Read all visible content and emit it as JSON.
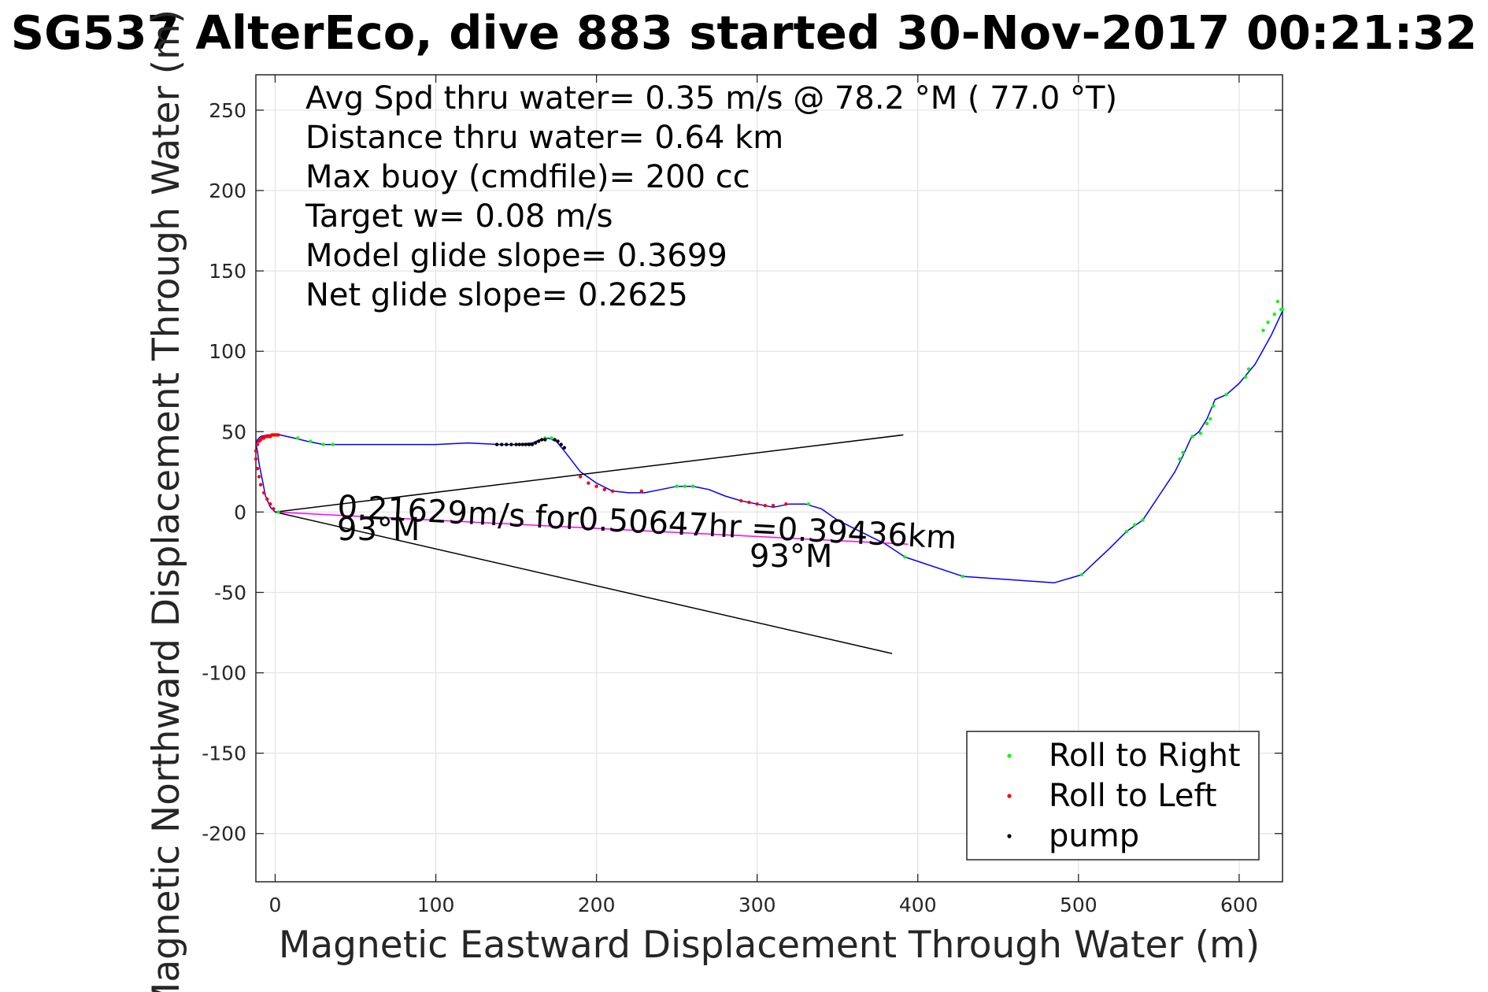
{
  "chart_data": {
    "type": "line",
    "title": "SG537 AlterEco, dive 883 started 30-Nov-2017 00:21:32",
    "xlabel": "Magnetic Eastward Displacement Through Water (m)",
    "ylabel": "Magnetic Northward Displacement Through Water (m)",
    "xlim": [
      -12,
      627
    ],
    "ylim": [
      -230,
      272
    ],
    "xticks": [
      0,
      100,
      200,
      300,
      400,
      500,
      600
    ],
    "yticks": [
      -200,
      -150,
      -100,
      -50,
      0,
      50,
      100,
      150,
      200,
      250
    ],
    "grid": true,
    "legend_position": "bottom-right",
    "colors": {
      "track": "#0000ff",
      "roll_right": "#00ff00",
      "roll_left": "#ff0000",
      "pump": "#000000",
      "current_line": "#ff00ff",
      "cone_lines": "#000000",
      "grid": "#e3e3e3"
    },
    "info_lines": [
      "Avg Spd thru water=  0.35 m/s @  78.2 °M ( 77.0 °T)",
      "Distance thru water=  0.64 km",
      "Max buoy (cmdfile)= 200 cc",
      "Target w= 0.08 m/s",
      "Model glide slope= 0.3699",
      "Net glide slope= 0.2625"
    ],
    "annotations": {
      "current_label": "0.21629m/s for0.50647hr =0.39436km",
      "heading_start": "93°M",
      "heading_end": "93°M"
    },
    "legend": [
      "Roll to Right",
      "Roll to Left",
      "pump"
    ],
    "series": [
      {
        "name": "track",
        "style": "line",
        "x": [
          0,
          -3,
          -6,
          -8,
          -10,
          -11,
          -12,
          -11,
          -9,
          -5,
          0,
          3,
          12,
          20,
          30,
          40,
          60,
          80,
          100,
          120,
          140,
          150,
          160,
          165,
          170,
          175,
          180,
          190,
          200,
          210,
          220,
          230,
          240,
          250,
          260,
          270,
          280,
          290,
          300,
          310,
          320,
          330,
          340,
          350,
          360,
          380,
          392,
          428,
          485,
          502,
          520,
          530,
          540,
          550,
          560,
          565,
          570,
          575,
          580,
          585,
          592,
          600,
          610,
          620,
          627
        ],
        "y": [
          0,
          3,
          10,
          20,
          30,
          38,
          42,
          45,
          47,
          48,
          48,
          48,
          46,
          44,
          42,
          42,
          42,
          42,
          42,
          43,
          42,
          42,
          43,
          45,
          46,
          44,
          38,
          25,
          18,
          13,
          12,
          12,
          14,
          16,
          16,
          14,
          10,
          7,
          5,
          3,
          5,
          5,
          2,
          -5,
          -10,
          -20,
          -28,
          -40,
          -44,
          -39,
          -22,
          -12,
          -5,
          10,
          25,
          35,
          46,
          50,
          58,
          70,
          73,
          80,
          92,
          110,
          125
        ]
      },
      {
        "name": "Roll to Right",
        "style": "points",
        "x": [
          2,
          14,
          22,
          30,
          36,
          168,
          172,
          250,
          255,
          260,
          332,
          392,
          428,
          502,
          530,
          535,
          540,
          563,
          565,
          571,
          576,
          580,
          582,
          584,
          592,
          604,
          606,
          615,
          618,
          622,
          624,
          626,
          627
        ],
        "y": [
          0,
          46,
          44,
          42,
          42,
          46,
          46,
          16,
          16,
          16,
          5,
          -28,
          -40,
          -39,
          -12,
          -8,
          -5,
          33,
          37,
          47,
          49,
          55,
          58,
          66,
          73,
          84,
          89,
          113,
          118,
          123,
          131,
          126,
          126
        ]
      },
      {
        "name": "Roll to Left",
        "style": "points",
        "x": [
          -1,
          -3,
          -5,
          -7,
          -9,
          -10,
          -11,
          -12,
          -12,
          -11,
          -10,
          -9,
          -8,
          -7,
          -6,
          -5,
          -4,
          -3,
          -2,
          -1,
          0,
          1,
          2,
          190,
          195,
          200,
          205,
          210,
          228,
          290,
          295,
          300,
          305,
          310,
          318
        ],
        "y": [
          2,
          5,
          8,
          12,
          17,
          22,
          27,
          33,
          38,
          42,
          44,
          45,
          46,
          46,
          47,
          47,
          47,
          47,
          48,
          48,
          48,
          48,
          48,
          22,
          18,
          16,
          14,
          13,
          13,
          7,
          6,
          5,
          4,
          4,
          5
        ]
      },
      {
        "name": "pump",
        "style": "points",
        "x": [
          138,
          141,
          144,
          147,
          150,
          152,
          154,
          156,
          158,
          160,
          162,
          164,
          166,
          168,
          174,
          176,
          178,
          180
        ],
        "y": [
          42,
          42,
          42,
          42,
          42,
          42,
          42,
          42,
          42,
          42,
          43,
          44,
          45,
          45,
          45,
          44,
          42,
          40
        ]
      },
      {
        "name": "depth-averaged current",
        "style": "line",
        "x": [
          0,
          394
        ],
        "y": [
          0,
          -20
        ]
      },
      {
        "name": "cone upper",
        "style": "line",
        "x": [
          0,
          391
        ],
        "y": [
          0,
          48
        ]
      },
      {
        "name": "cone lower",
        "style": "line",
        "x": [
          0,
          384
        ],
        "y": [
          0,
          -88
        ]
      }
    ]
  }
}
